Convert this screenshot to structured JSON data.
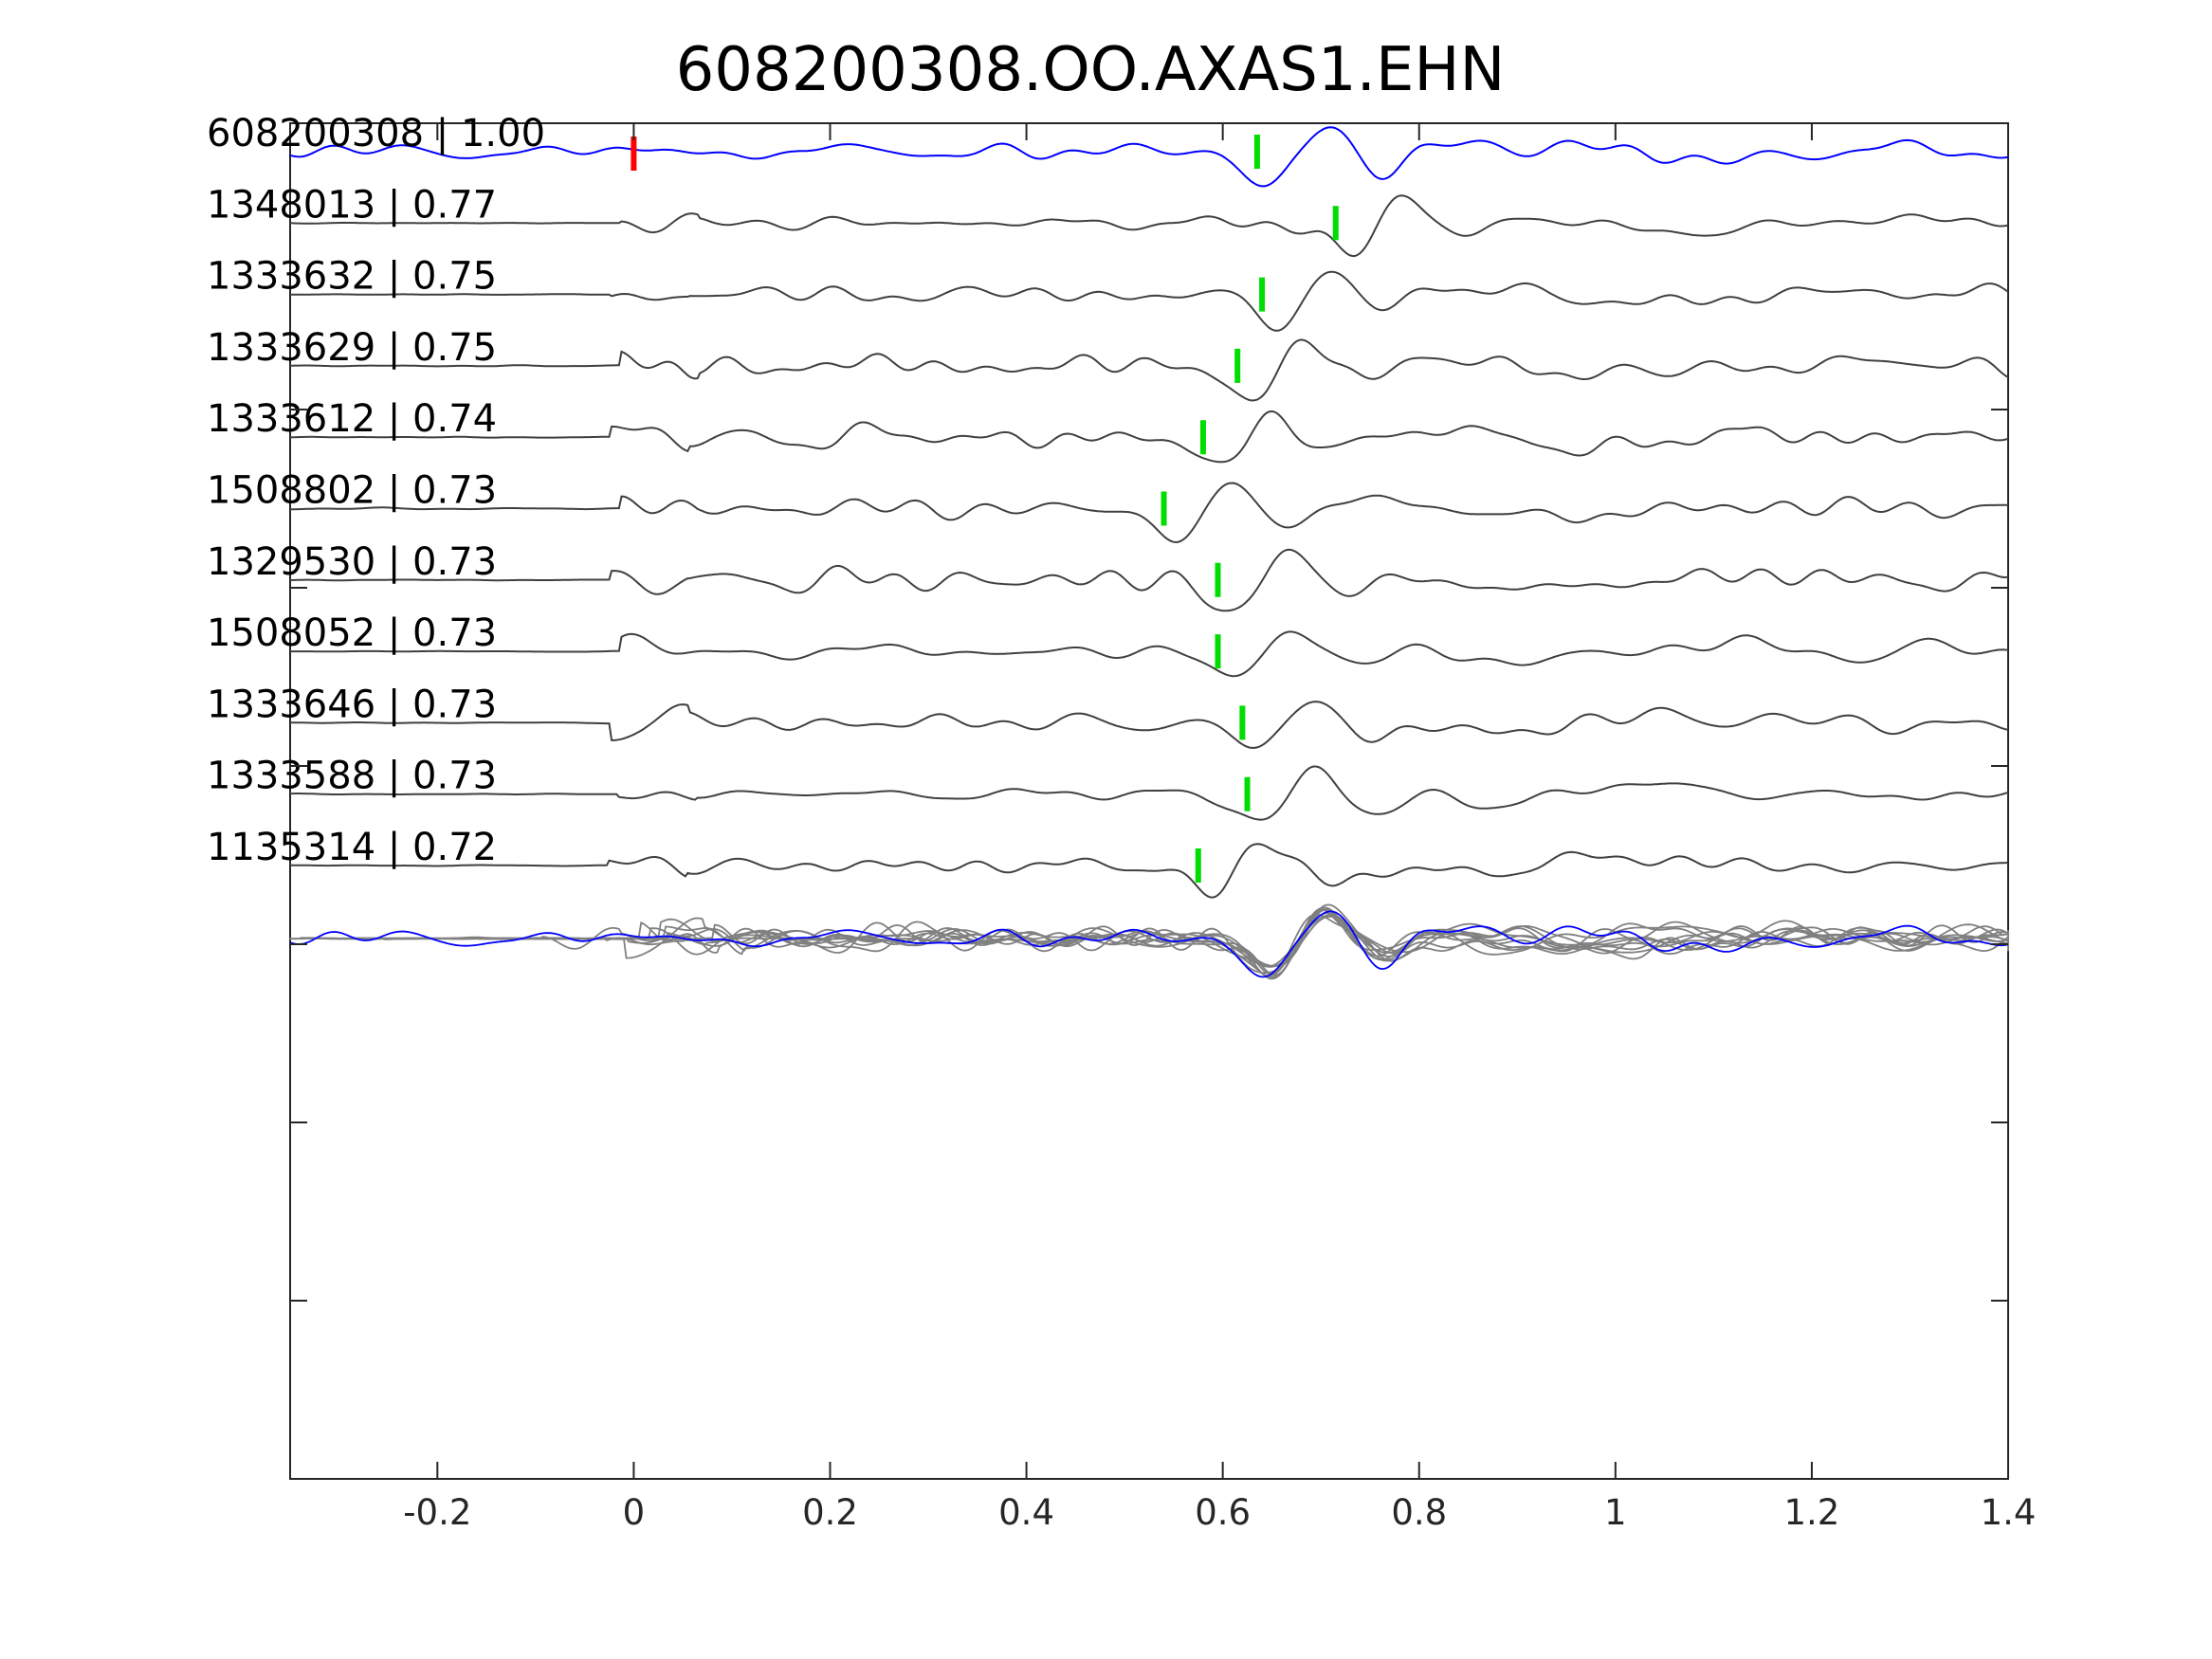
{
  "chart_data": {
    "type": "line",
    "title": "608200308.OO.AXAS1.EHN",
    "xlabel": "",
    "ylabel": "",
    "xlim": [
      -0.35,
      1.4
    ],
    "xticks": [
      -0.2,
      0,
      0.2,
      0.4,
      0.6,
      0.8,
      1,
      1.2,
      1.4
    ],
    "xtick_labels": [
      "-0.2",
      "0",
      "0.2",
      "0.4",
      "0.6",
      "0.8",
      "1",
      "1.2",
      "1.4"
    ],
    "grid": false,
    "colors": {
      "template": "#0000ff",
      "trace": "#404040",
      "stack": "#808080",
      "reference_pick": "#ff0000",
      "detection_pick": "#00dd00"
    },
    "reference_pick_time": 0.0,
    "traces": [
      {
        "label": "608200308 | 1.00",
        "id": "608200308",
        "cc": 1.0,
        "pick_time": 0.635,
        "template": true
      },
      {
        "label": "1348013 | 0.77",
        "id": "1348013",
        "cc": 0.77,
        "pick_time": 0.715
      },
      {
        "label": "1333632 | 0.75",
        "id": "1333632",
        "cc": 0.75,
        "pick_time": 0.64
      },
      {
        "label": "1333629 | 0.75",
        "id": "1333629",
        "cc": 0.75,
        "pick_time": 0.615
      },
      {
        "label": "1333612 | 0.74",
        "id": "1333612",
        "cc": 0.74,
        "pick_time": 0.58
      },
      {
        "label": "1508802 | 0.73",
        "id": "1508802",
        "cc": 0.73,
        "pick_time": 0.54
      },
      {
        "label": "1329530 | 0.73",
        "id": "1329530",
        "cc": 0.73,
        "pick_time": 0.595
      },
      {
        "label": "1508052 | 0.73",
        "id": "1508052",
        "cc": 0.73,
        "pick_time": 0.595
      },
      {
        "label": "1333646 | 0.73",
        "id": "1333646",
        "cc": 0.73,
        "pick_time": 0.62
      },
      {
        "label": "1333588 | 0.73",
        "id": "1333588",
        "cc": 0.73,
        "pick_time": 0.625
      },
      {
        "label": "1135314 | 0.72",
        "id": "1135314",
        "cc": 0.72,
        "pick_time": 0.575
      }
    ]
  }
}
